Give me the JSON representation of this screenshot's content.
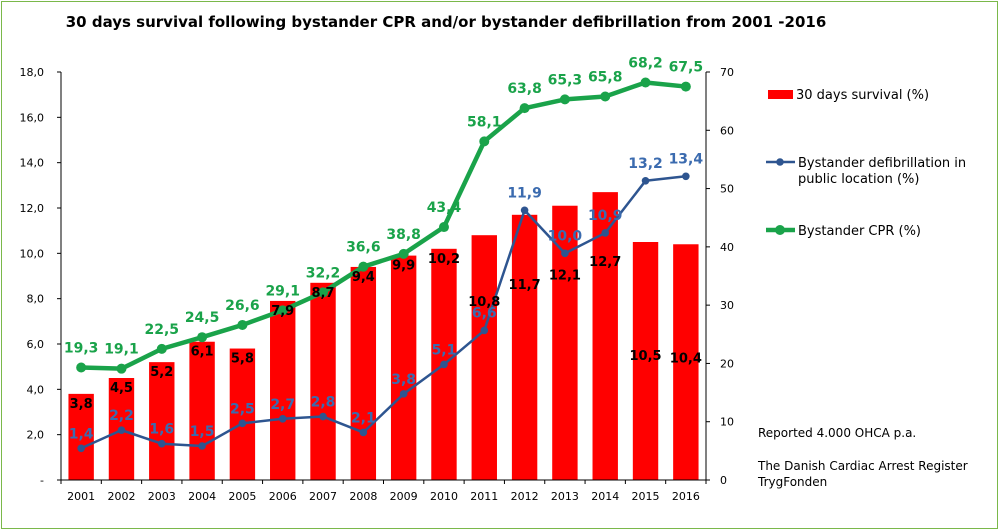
{
  "chart_data": {
    "type": "bar",
    "title": "30 days survival following bystander CPR and/or bystander defibrillation from 2001 -2016",
    "categories": [
      "2001",
      "2002",
      "2003",
      "2004",
      "2005",
      "2006",
      "2007",
      "2008",
      "2009",
      "2010",
      "2011",
      "2012",
      "2013",
      "2014",
      "2015",
      "2016"
    ],
    "left_axis": {
      "ylim": [
        0,
        18
      ],
      "ticks": [
        "-",
        "2,0",
        "4,0",
        "6,0",
        "8,0",
        "10,0",
        "12,0",
        "14,0",
        "16,0",
        "18,0"
      ]
    },
    "right_axis": {
      "ylim": [
        0,
        70
      ],
      "ticks": [
        "0",
        "10",
        "20",
        "30",
        "40",
        "50",
        "60",
        "70"
      ]
    },
    "series": [
      {
        "name": "30 days survival (%)",
        "type": "bar",
        "axis": "left",
        "color": "#ff0000",
        "values": [
          3.8,
          4.5,
          5.2,
          6.1,
          5.8,
          7.9,
          8.7,
          9.4,
          9.9,
          10.2,
          10.8,
          11.7,
          12.1,
          12.7,
          10.5,
          10.4
        ],
        "labels": [
          "3,8",
          "4,5",
          "5,2",
          "6,1",
          "5,8",
          "7,9",
          "8,7",
          "9,4",
          "9,9",
          "10,2",
          "10,8",
          "11,7",
          "12,1",
          "12,7",
          "10,5",
          "10,4"
        ]
      },
      {
        "name": "Bystander defibrillation in public location (%)",
        "type": "line",
        "axis": "left",
        "color": "#2e5590",
        "label_color": "#3b6baf",
        "values": [
          1.4,
          2.2,
          1.6,
          1.5,
          2.5,
          2.7,
          2.8,
          2.1,
          3.8,
          5.1,
          6.6,
          11.9,
          10.0,
          10.9,
          13.2,
          13.4
        ],
        "labels": [
          "1,4",
          "2,2",
          "1,6",
          "1,5",
          "2,5",
          "2,7",
          "2,8",
          "2,1",
          "3,8",
          "5,1",
          "6,6",
          "11,9",
          "10,0",
          "10,9",
          "13,2",
          "13,4"
        ]
      },
      {
        "name": "Bystander CPR (%)",
        "type": "line",
        "axis": "right",
        "color": "#1aa34a",
        "values": [
          19.3,
          19.1,
          22.5,
          24.5,
          26.6,
          29.1,
          32.2,
          36.6,
          38.8,
          43.4,
          58.1,
          63.8,
          65.3,
          65.8,
          68.2,
          67.5
        ],
        "labels": [
          "19,3",
          "19,1",
          "22,5",
          "24,5",
          "26,6",
          "29,1",
          "32,2",
          "36,6",
          "38,8",
          "43,4",
          "58,1",
          "63,8",
          "65,3",
          "65,8",
          "68,2",
          "67,5"
        ]
      }
    ],
    "legend": {
      "position": "right",
      "items": [
        {
          "key": "bar",
          "lines": [
            "30 days survival (%)"
          ]
        },
        {
          "key": "defib",
          "lines": [
            "Bystander defibrillation in",
            "public location (%)"
          ]
        },
        {
          "key": "cpr",
          "lines": [
            "Bystander CPR (%)"
          ]
        }
      ]
    },
    "annotations": {
      "reported": "Reported 4.000 OHCA p.a.",
      "source_line1": "The Danish Cardiac Arrest Register",
      "source_line2": "TrygFonden"
    },
    "grid": false
  }
}
